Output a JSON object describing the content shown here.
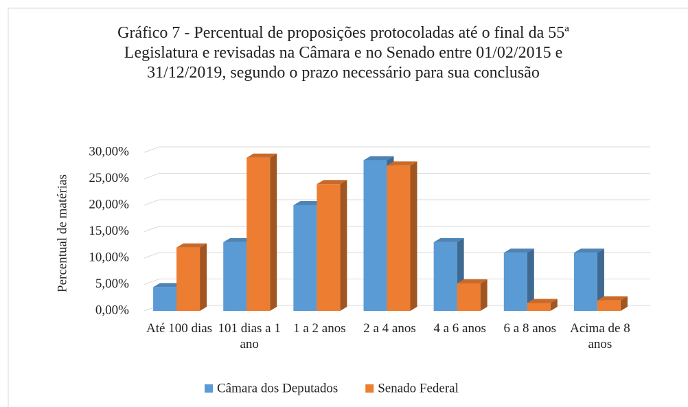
{
  "chart_data": {
    "type": "bar3d",
    "title": "Gráfico 7 - Percentual de proposições protocoladas até o final da 55ª Legislatura e revisadas na Câmara e no Senado entre 01/02/2015  e 31/12/2019, segundo o prazo necessário para sua conclusão",
    "y_label": "Percentual de matérias",
    "categories": [
      "Até 100 dias",
      "101 dias a 1 ano",
      "1 a 2 anos",
      "2 a 4 anos",
      "4 a 6 anos",
      "6 a 8 anos",
      "Acima de 8 anos"
    ],
    "series": [
      {
        "name": "Câmara dos Deputados",
        "color": "#5b9bd5",
        "values": [
          4.5,
          13,
          20,
          28.5,
          13,
          11,
          11
        ]
      },
      {
        "name": "Senado Federal",
        "color": "#ed7d31",
        "values": [
          12,
          29,
          24,
          27.5,
          5.2,
          1.5,
          2
        ]
      }
    ],
    "ylim": [
      0,
      30
    ],
    "yticks": [
      {
        "value": 0,
        "label": "0,00%"
      },
      {
        "value": 5,
        "label": "5,00%"
      },
      {
        "value": 10,
        "label": "10,00%"
      },
      {
        "value": 15,
        "label": "15,00%"
      },
      {
        "value": 20,
        "label": "20,00%"
      },
      {
        "value": 25,
        "label": "25,00%"
      },
      {
        "value": 30,
        "label": "30,00%"
      }
    ],
    "grid": true,
    "legend": "bottom"
  }
}
